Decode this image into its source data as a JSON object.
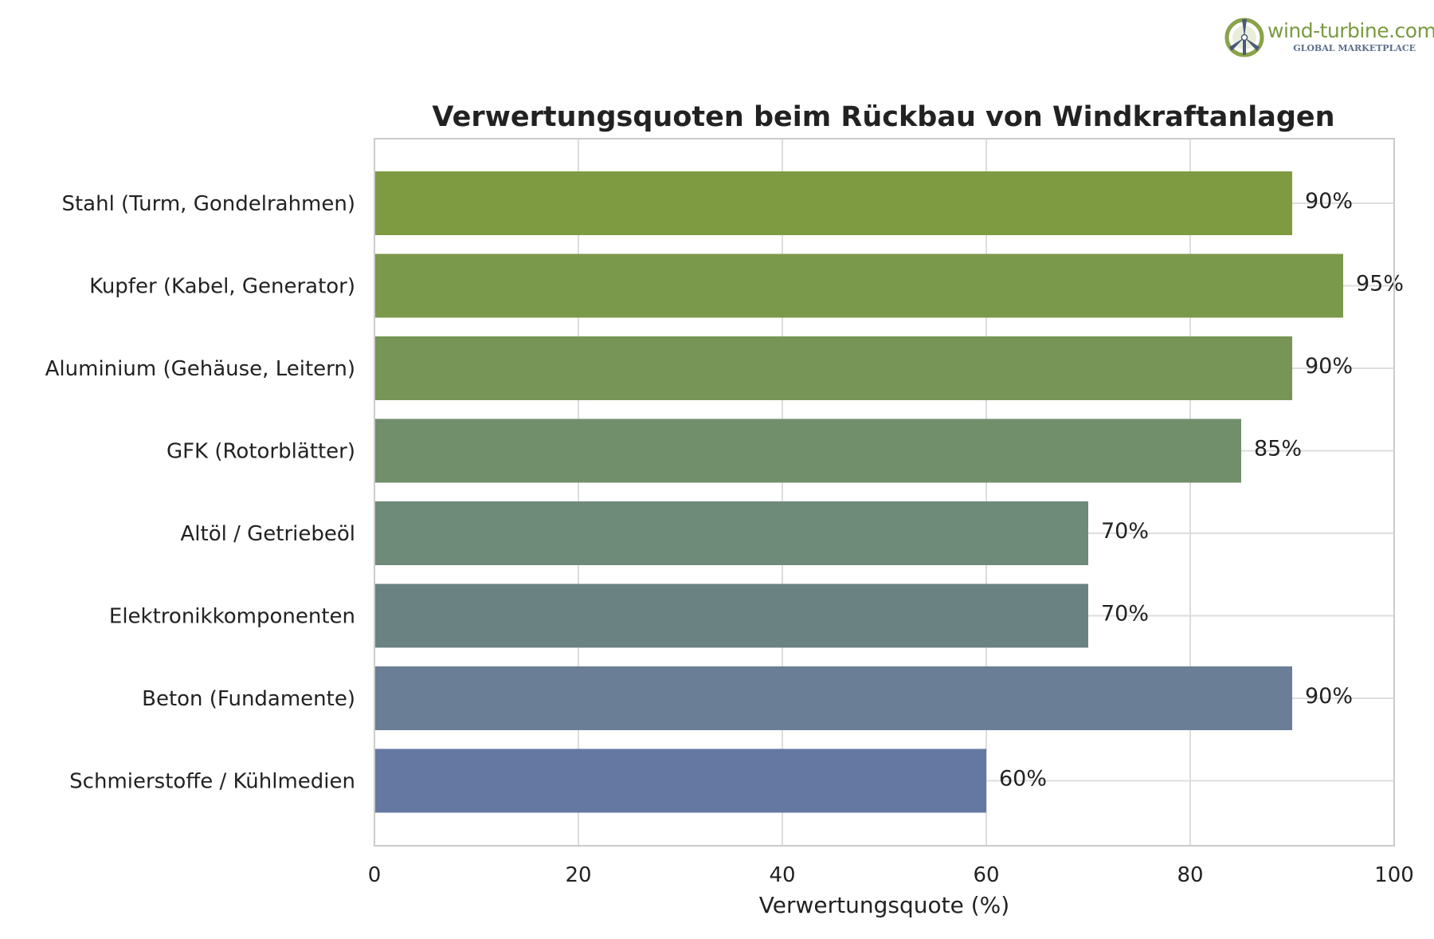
{
  "logo": {
    "title": "wind-turbine.com",
    "subtitle": "GLOBAL MARKETPLACE",
    "icon": "wind-turbine-logo-icon"
  },
  "chart_data": {
    "type": "bar",
    "orientation": "horizontal",
    "title": "Verwertungsquoten beim Rückbau von Windkraftanlagen",
    "xlabel": "Verwertungsquote (%)",
    "ylabel": "",
    "xlim": [
      0,
      100
    ],
    "xticks": [
      0,
      20,
      40,
      60,
      80,
      100
    ],
    "grid": true,
    "categories": [
      "Stahl (Turm, Gondelrahmen)",
      "Kupfer (Kabel, Generator)",
      "Aluminium (Gehäuse, Leitern)",
      "GFK (Rotorblätter)",
      "Altöl / Getriebeöl",
      "Elektronikkomponenten",
      "Beton (Fundamente)",
      "Schmierstoffe / Kühlmedien"
    ],
    "values": [
      90,
      95,
      90,
      85,
      70,
      70,
      90,
      60
    ],
    "value_labels": [
      "90%",
      "95%",
      "90%",
      "85%",
      "70%",
      "70%",
      "90%",
      "60%"
    ],
    "colors": [
      "#7e9b42",
      "#7b994b",
      "#779556",
      "#728f6b",
      "#6e8a79",
      "#6b8282",
      "#6a7e96",
      "#6478a2"
    ]
  }
}
